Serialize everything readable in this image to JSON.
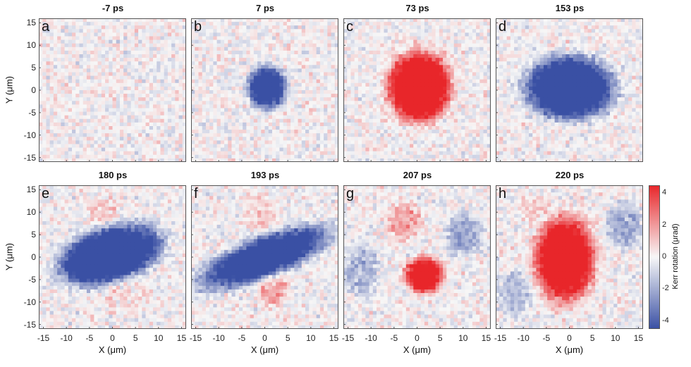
{
  "chart_data": {
    "type": "heatmap",
    "layout": "2 rows x 4 columns of Kerr rotation maps",
    "x_unit_label": "X (μm)",
    "y_unit_label": "Y (μm)",
    "xlim": [
      -16,
      16
    ],
    "ylim": [
      -16,
      16
    ],
    "x_ticks": [
      -15,
      -10,
      -5,
      0,
      5,
      10,
      15
    ],
    "y_ticks": [
      -15,
      -10,
      -5,
      0,
      5,
      10,
      15
    ],
    "colorbar": {
      "label": "Kerr rotation (μrad)",
      "range": [
        -4.5,
        4.5
      ],
      "ticks": [
        -4,
        -2,
        0,
        2,
        4
      ],
      "colors": {
        "negative": "#3a50a4",
        "zero": "#f7f7f7",
        "positive": "#e8262a"
      }
    },
    "panels": [
      {
        "letter": "a",
        "time": "-7 ps",
        "show_ylabel": true,
        "show_xlabel": false,
        "ylabel": "Y (μm)",
        "blobs": []
      },
      {
        "letter": "b",
        "time": "7 ps",
        "show_ylabel": false,
        "show_xlabel": false,
        "blobs": [
          {
            "cx": 0.5,
            "cy": 0.5,
            "rx": 4.2,
            "ry": 4.8,
            "angle": 0,
            "amp": -6
          }
        ]
      },
      {
        "letter": "c",
        "time": "73 ps",
        "show_ylabel": false,
        "show_xlabel": false,
        "blobs": [
          {
            "cx": 0.5,
            "cy": 0.8,
            "rx": 6.8,
            "ry": 7.8,
            "angle": 0,
            "amp": 7
          }
        ]
      },
      {
        "letter": "d",
        "time": "153 ps",
        "show_ylabel": false,
        "show_xlabel": false,
        "blobs": [
          {
            "cx": 0,
            "cy": 0.5,
            "rx": 9.5,
            "ry": 7.0,
            "angle": 0,
            "amp": -7
          }
        ]
      },
      {
        "letter": "e",
        "time": "180 ps",
        "show_ylabel": true,
        "show_xlabel": true,
        "ylabel": "Y (μm)",
        "blobs": [
          {
            "cx": -0.5,
            "cy": 0.5,
            "rx": 11.5,
            "ry": 6.0,
            "angle": 18,
            "amp": -7
          },
          {
            "cx": -2,
            "cy": 10,
            "rx": 4,
            "ry": 3.5,
            "angle": 0,
            "amp": 0.8
          },
          {
            "cx": 2,
            "cy": -8,
            "rx": 4,
            "ry": 3.5,
            "angle": 0,
            "amp": 0.8
          }
        ]
      },
      {
        "letter": "f",
        "time": "193 ps",
        "show_ylabel": false,
        "show_xlabel": true,
        "blobs": [
          {
            "cx": 0,
            "cy": 0,
            "rx": 15,
            "ry": 4.5,
            "angle": 22,
            "amp": -6
          },
          {
            "cx": -1,
            "cy": 9.5,
            "rx": 4,
            "ry": 3.5,
            "angle": 0,
            "amp": 1.0
          },
          {
            "cx": 2,
            "cy": -7.5,
            "rx": 3.5,
            "ry": 3.5,
            "angle": 0,
            "amp": 1.8
          }
        ]
      },
      {
        "letter": "g",
        "time": "207 ps",
        "show_ylabel": false,
        "show_xlabel": true,
        "blobs": [
          {
            "cx": 1.5,
            "cy": -4,
            "rx": 4.2,
            "ry": 4.0,
            "angle": 0,
            "amp": 6
          },
          {
            "cx": -3,
            "cy": 8,
            "rx": 4,
            "ry": 4.5,
            "angle": 0,
            "amp": 1.8
          },
          {
            "cx": 10,
            "cy": 5,
            "rx": 4,
            "ry": 5,
            "angle": 0,
            "amp": -2.2
          },
          {
            "cx": -12,
            "cy": -3,
            "rx": 4,
            "ry": 6,
            "angle": 0,
            "amp": -1.8
          }
        ]
      },
      {
        "letter": "h",
        "time": "220 ps",
        "show_ylabel": false,
        "show_xlabel": true,
        "blobs": [
          {
            "cx": -1,
            "cy": -0.5,
            "rx": 6.5,
            "ry": 9.5,
            "angle": 0,
            "amp": 6.5
          },
          {
            "cx": 12,
            "cy": 7,
            "rx": 4,
            "ry": 5,
            "angle": 0,
            "amp": -2
          },
          {
            "cx": -12,
            "cy": -8,
            "rx": 4,
            "ry": 5,
            "angle": 0,
            "amp": -1.5
          },
          {
            "cx": -8,
            "cy": 11,
            "rx": 3,
            "ry": 3,
            "angle": 0,
            "amp": 0.8
          }
        ]
      }
    ]
  }
}
